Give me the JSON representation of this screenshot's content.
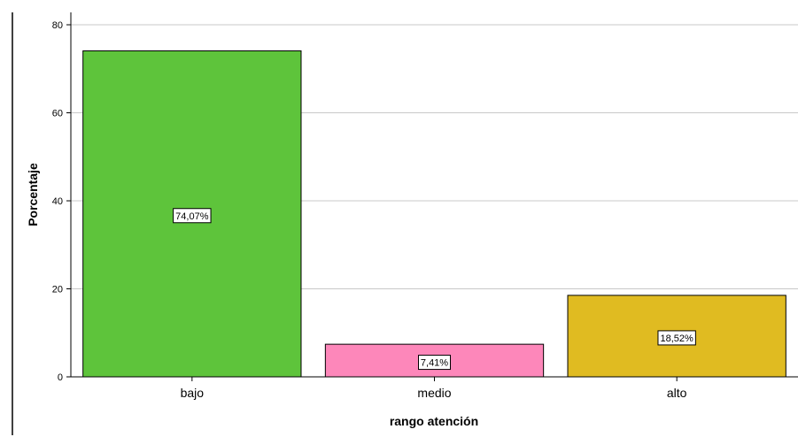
{
  "chart_data": {
    "type": "bar",
    "categories": [
      "bajo",
      "medio",
      "alto"
    ],
    "values": [
      74.07,
      7.41,
      18.52
    ],
    "data_labels": [
      "74,07%",
      "7,41%",
      "18,52%"
    ],
    "colors": [
      "#5ec43b",
      "#fd87ba",
      "#e0bb21"
    ],
    "title": "",
    "xlabel": "rango atención",
    "ylabel": "Porcentaje",
    "ylim": [
      0,
      80
    ],
    "yticks": [
      0,
      20,
      40,
      60,
      80
    ],
    "ytick_labels": [
      "0",
      "20",
      "40",
      "60",
      "80"
    ],
    "grid": true,
    "legend": "none"
  }
}
